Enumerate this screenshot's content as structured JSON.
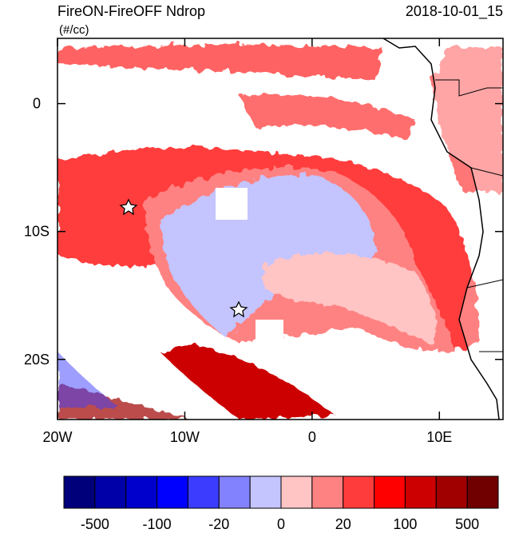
{
  "map": {
    "title": "FireON-FireOFF Ndrop",
    "units": "(#/cc)",
    "date": "2018-10-01_15",
    "xlim": [
      -20,
      15
    ],
    "ylim": [
      -24.7,
      5.1
    ],
    "xticks": [
      {
        "value": -20,
        "label": "20W"
      },
      {
        "value": -10,
        "label": "10W"
      },
      0,
      {
        "value": 10,
        "label": "10E"
      }
    ],
    "yticks": [
      0,
      {
        "value": -10,
        "label": "10S"
      },
      {
        "value": -20,
        "label": "20S"
      }
    ],
    "colorbar": {
      "colors": [
        "#00007a",
        "#0000a8",
        "#0000cc",
        "#0000ff",
        "#3c3cff",
        "#8282ff",
        "#c4c4ff",
        "#ffc4c4",
        "#ff8282",
        "#ff3c3c",
        "#ff0000",
        "#cc0000",
        "#a00000",
        "#700000"
      ],
      "labels": [
        "-500",
        "-100",
        "-20",
        "0",
        "20",
        "100",
        "500"
      ]
    }
  }
}
